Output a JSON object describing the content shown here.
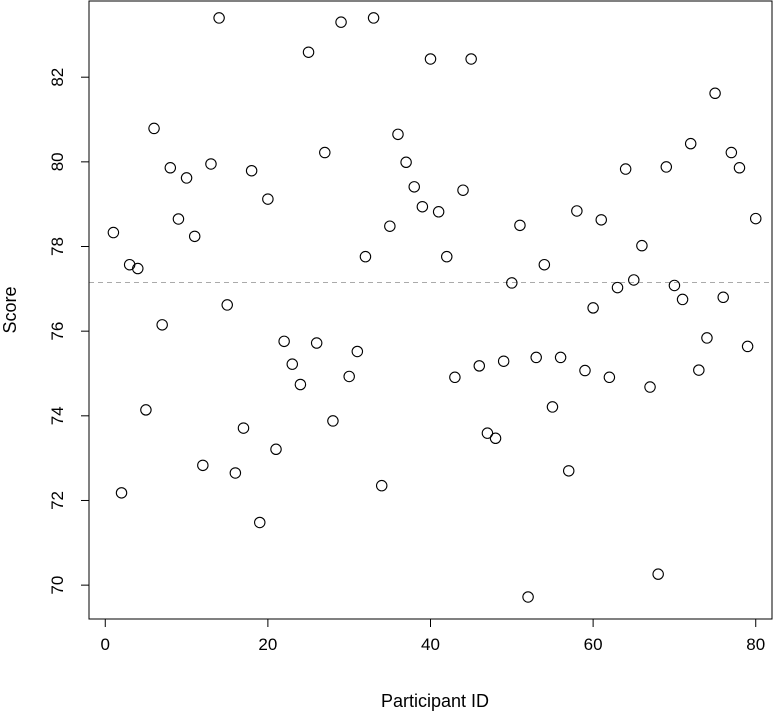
{
  "chart_data": {
    "type": "scatter",
    "xlabel": "Participant ID",
    "ylabel": "Score",
    "xlim": [
      -2,
      82
    ],
    "ylim": [
      69.2,
      83.8
    ],
    "x_ticks": [
      0,
      20,
      40,
      60,
      80
    ],
    "y_ticks": [
      70,
      72,
      74,
      76,
      78,
      80,
      82
    ],
    "x_tick_labels": [
      "0",
      "20",
      "40",
      "60",
      "80"
    ],
    "y_tick_labels": [
      "70",
      "72",
      "74",
      "76",
      "78",
      "80",
      "82"
    ],
    "reference_line": {
      "y": 77.15,
      "style": "dashed",
      "color": "#aaaaaa"
    },
    "marker": {
      "shape": "open-circle",
      "color": "#000000"
    },
    "grid": false,
    "legend": "none",
    "x": [
      1,
      2,
      3,
      4,
      5,
      6,
      7,
      8,
      9,
      10,
      11,
      12,
      13,
      14,
      15,
      16,
      17,
      18,
      19,
      20,
      21,
      22,
      23,
      24,
      25,
      26,
      27,
      28,
      29,
      30,
      31,
      32,
      33,
      34,
      35,
      36,
      37,
      38,
      39,
      40,
      41,
      42,
      43,
      44,
      45,
      46,
      47,
      48,
      49,
      50,
      51,
      52,
      53,
      54,
      55,
      56,
      57,
      58,
      59,
      60,
      61,
      62,
      63,
      64,
      65,
      66,
      67,
      68,
      69,
      70,
      71,
      72,
      73,
      74,
      75,
      76,
      77,
      78,
      79,
      80
    ],
    "y": [
      78.33,
      72.18,
      77.57,
      77.48,
      74.14,
      80.79,
      76.15,
      79.86,
      78.65,
      79.62,
      78.24,
      72.83,
      79.95,
      83.4,
      76.62,
      72.65,
      73.71,
      79.79,
      71.48,
      79.12,
      73.21,
      75.76,
      75.22,
      74.74,
      82.59,
      75.72,
      80.22,
      73.88,
      83.3,
      74.93,
      75.52,
      77.76,
      83.4,
      72.35,
      78.48,
      80.65,
      79.99,
      79.41,
      78.94,
      82.43,
      78.82,
      77.76,
      74.91,
      79.33,
      82.43,
      75.18,
      73.59,
      73.47,
      75.29,
      77.14,
      78.5,
      69.72,
      75.38,
      77.57,
      74.21,
      75.38,
      72.7,
      78.84,
      75.07,
      76.55,
      78.63,
      74.91,
      77.03,
      79.83,
      77.21,
      78.02,
      74.68,
      70.26,
      79.88,
      77.08,
      76.75,
      80.43,
      75.08,
      75.84,
      81.62,
      76.8,
      80.22,
      79.86,
      75.64,
      78.66
    ]
  }
}
